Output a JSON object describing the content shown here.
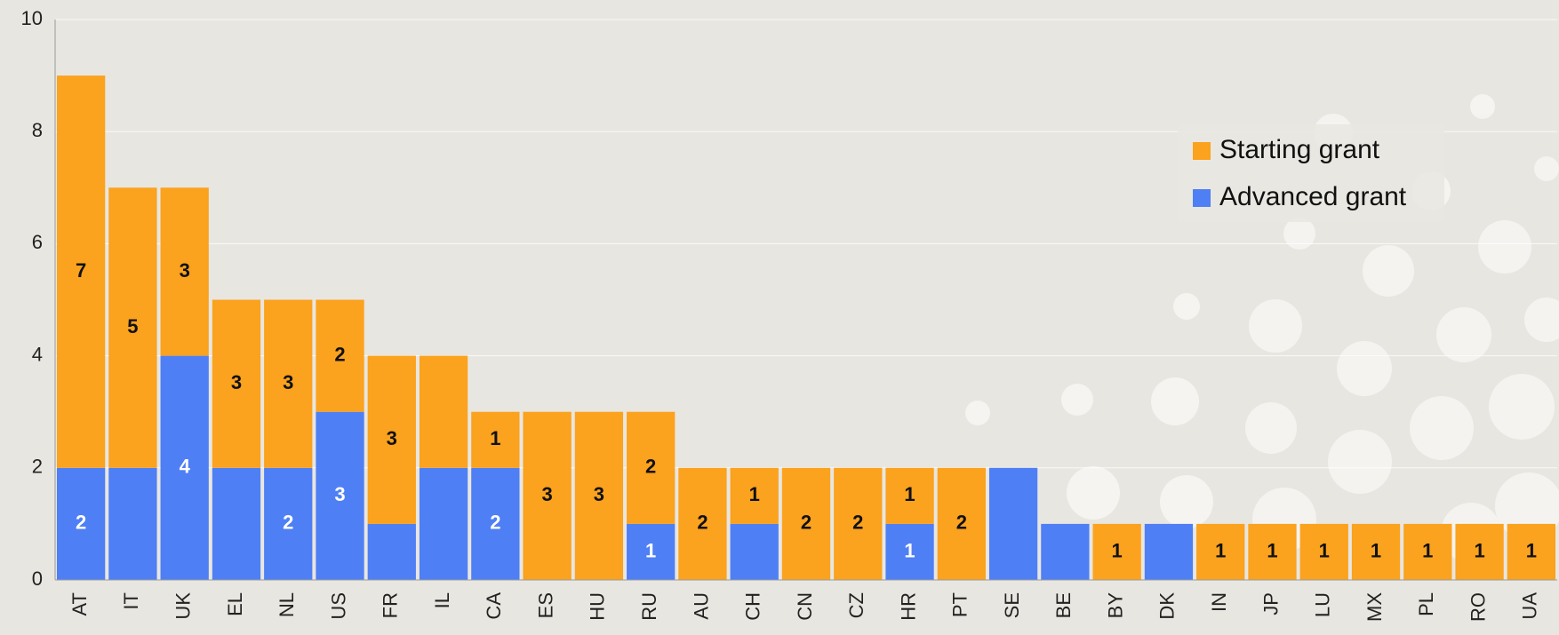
{
  "chart_data": {
    "type": "stacked-bar",
    "categories": [
      "AT",
      "IT",
      "UK",
      "EL",
      "NL",
      "US",
      "FR",
      "IL",
      "CA",
      "ES",
      "HU",
      "RU",
      "AU",
      "CH",
      "CN",
      "CZ",
      "HR",
      "PT",
      "SE",
      "BE",
      "BY",
      "DK",
      "IN",
      "JP",
      "LU",
      "MX",
      "PL",
      "RO",
      "UA"
    ],
    "series": [
      {
        "name": "Advanced grant",
        "color": "#4f7ff5",
        "values": [
          2,
          2,
          4,
          2,
          2,
          3,
          1,
          2,
          2,
          0,
          0,
          1,
          0,
          1,
          0,
          0,
          1,
          0,
          2,
          1,
          0,
          1,
          0,
          0,
          0,
          0,
          0,
          0,
          0
        ],
        "value_labels": [
          "2",
          null,
          "4",
          null,
          "2",
          "3",
          null,
          null,
          "2",
          null,
          null,
          "1",
          null,
          null,
          null,
          null,
          "1",
          null,
          null,
          null,
          null,
          null,
          null,
          null,
          null,
          null,
          null,
          null,
          null
        ]
      },
      {
        "name": "Starting grant",
        "color": "#fba21e",
        "values": [
          7,
          5,
          3,
          3,
          3,
          2,
          3,
          2,
          1,
          3,
          3,
          2,
          2,
          1,
          2,
          2,
          1,
          2,
          0,
          0,
          1,
          0,
          1,
          1,
          1,
          1,
          1,
          1,
          1
        ],
        "value_labels": [
          "7",
          "5",
          "3",
          "3",
          "3",
          "2",
          "3",
          null,
          "1",
          "3",
          "3",
          "2",
          "2",
          "1",
          "2",
          "2",
          "1",
          "2",
          null,
          null,
          "1",
          null,
          "1",
          "1",
          "1",
          "1",
          "1",
          "1",
          "1"
        ]
      }
    ],
    "ylim": [
      0,
      10
    ],
    "yticks": [
      0,
      2,
      4,
      6,
      8,
      10
    ],
    "grid": true,
    "legend": "upper-right"
  }
}
